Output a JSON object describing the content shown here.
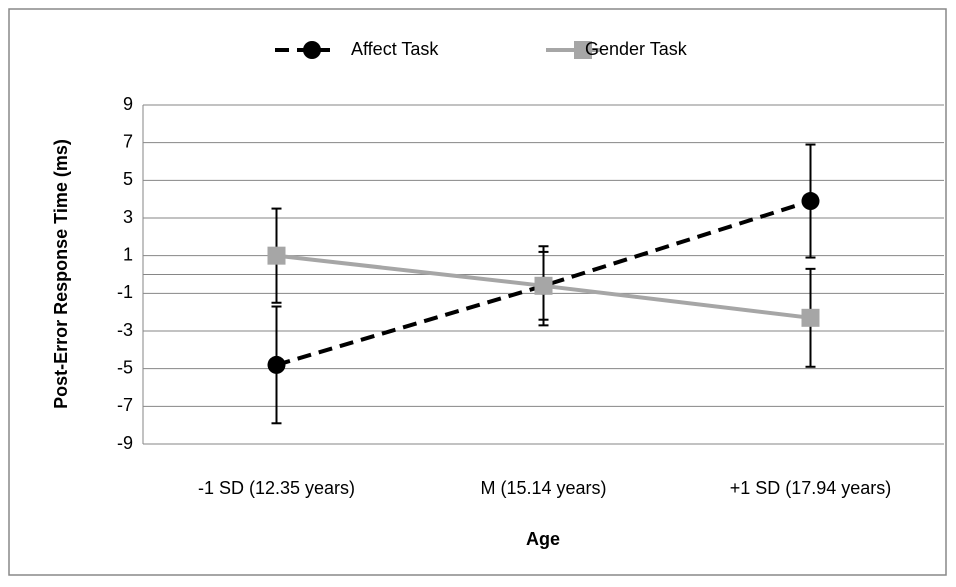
{
  "chart_data": {
    "type": "line",
    "y_label": "Post-Error Response Time (ms)",
    "x_label": "Age",
    "categories": [
      "-1 SD (12.35 years)",
      "M (15.14 years)",
      "+1 SD (17.94 years)"
    ],
    "series": [
      {
        "name": "Affect Task",
        "color": "#000000",
        "dashed": true,
        "marker": "circle",
        "values": [
          -4.8,
          -0.6,
          3.9
        ],
        "errors": [
          3.1,
          2.1,
          3.0
        ]
      },
      {
        "name": "Gender Task",
        "color": "#a6a6a6",
        "dashed": false,
        "marker": "square",
        "values": [
          1.0,
          -0.6,
          -2.3
        ],
        "errors": [
          2.5,
          1.8,
          2.6
        ]
      }
    ],
    "ylim": [
      -9,
      9
    ],
    "yticks": [
      -9,
      -7,
      -5,
      -3,
      -1,
      1,
      3,
      5,
      7,
      9
    ],
    "grid": true,
    "legend": "top"
  }
}
